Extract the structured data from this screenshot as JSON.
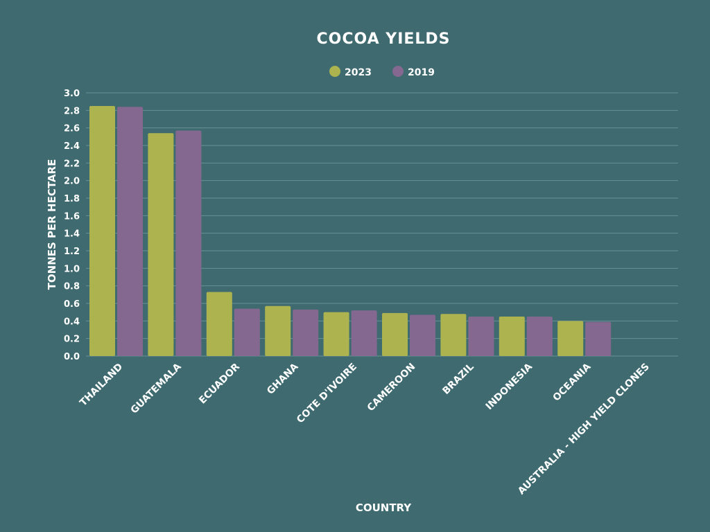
{
  "chart_data": {
    "type": "bar",
    "title": "COCOA YIELDS",
    "xlabel": "COUNTRY",
    "ylabel": "TONNES PER HECTARE",
    "ylim": [
      0,
      3.0
    ],
    "yticks": [
      "0.0",
      "0.2",
      "0.4",
      "0.6",
      "0.8",
      "1.0",
      "1.2",
      "1.4",
      "1.6",
      "1.8",
      "2.0",
      "2.2",
      "2.4",
      "2.6",
      "2.8",
      "3.0"
    ],
    "grid": true,
    "legend_position": "top",
    "categories": [
      "THAILAND",
      "GUATEMALA",
      "ECUADOR",
      "GHANA",
      "COTE D'IVOIRE",
      "CAMEROON",
      "BRAZIL",
      "INDONESIA",
      "OCEANIA",
      "AUSTRALIA - HIGH YIELD CLONES"
    ],
    "series": [
      {
        "name": "2023",
        "color": "#adb44f",
        "values": [
          2.85,
          2.54,
          0.73,
          0.57,
          0.5,
          0.49,
          0.48,
          0.45,
          0.4,
          null
        ]
      },
      {
        "name": "2019",
        "color": "#856890",
        "values": [
          2.84,
          2.57,
          0.54,
          0.53,
          0.52,
          0.47,
          0.45,
          0.45,
          0.39,
          null
        ]
      }
    ]
  },
  "colors": {
    "background": "#3f6b70",
    "gridline": "#6a9195",
    "text": "#ffffff"
  }
}
